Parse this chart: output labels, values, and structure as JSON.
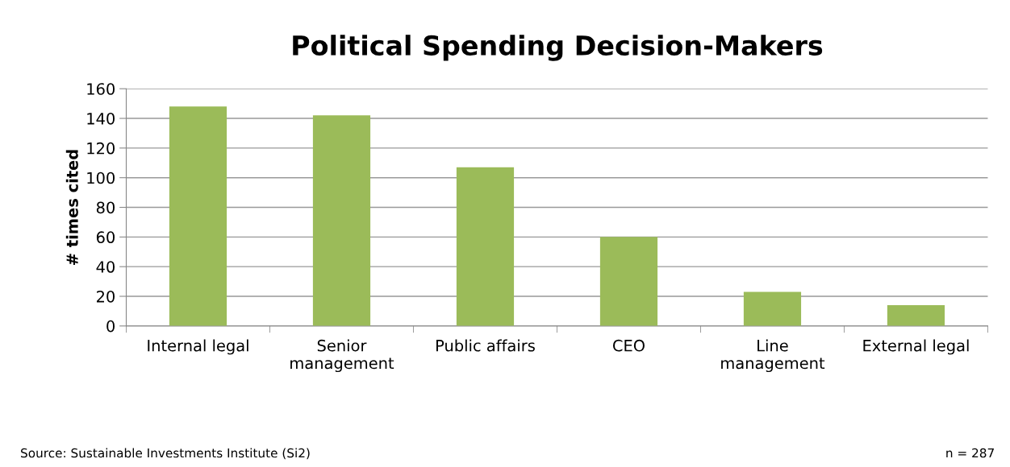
{
  "chart_data": {
    "type": "bar",
    "title": "Political Spending Decision-Makers",
    "ylabel": "# times cited",
    "categories": [
      "Internal legal",
      "Senior\nmanagement",
      "Public affairs",
      "CEO",
      "Line\nmanagement",
      "External legal"
    ],
    "values": [
      148,
      142,
      107,
      60,
      23,
      14
    ],
    "color": "#9bbb59",
    "ylim": [
      0,
      160
    ],
    "yticks": [
      0,
      20,
      40,
      60,
      80,
      100,
      120,
      140,
      160
    ],
    "grid": "y",
    "legend": false,
    "annotations": [
      "Source: Sustainable Investments Institute (Si2)",
      "n = 287"
    ]
  }
}
